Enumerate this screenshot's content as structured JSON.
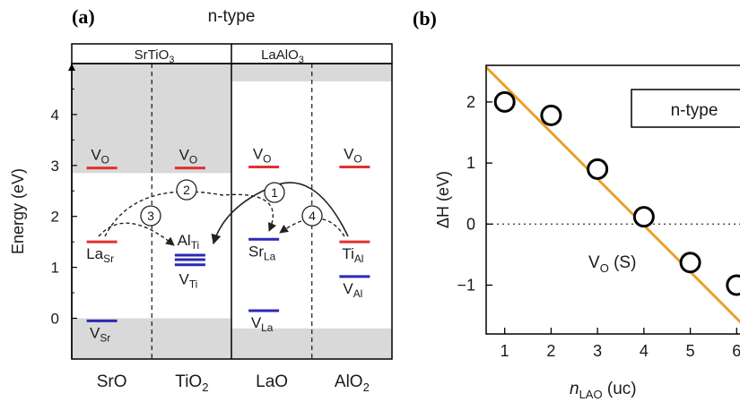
{
  "panel_a": {
    "panel_label": "(a)",
    "title": "n-type",
    "header_left": "SrTiO",
    "header_left_sub": "3",
    "header_right": "LaAlO",
    "header_right_sub": "3",
    "ylabel": "Energy (eV)",
    "yticks": [
      "0",
      "1",
      "2",
      "3",
      "4"
    ],
    "columns": [
      {
        "main": "SrO",
        "sub": ""
      },
      {
        "main": "TiO",
        "sub": "2"
      },
      {
        "main": "LaO",
        "sub": ""
      },
      {
        "main": "AlO",
        "sub": "2"
      }
    ],
    "transition_labels": [
      "1",
      "2",
      "3",
      "4"
    ],
    "colors": {
      "vo": "#e0312f",
      "dopant": "#e0312f",
      "vacancy": "#2a2ab5",
      "band": "#d9d9d9",
      "arrow": "#222222"
    }
  },
  "panel_b": {
    "panel_label": "(b)",
    "legend": "n-type",
    "ylabel": "ΔH (eV)",
    "xlabel": "n",
    "xlabel_sub": "LAO",
    "xlabel_unit": " (uc)",
    "annotation": "V",
    "annotation_sub": "O",
    "annotation_tail": " (S)",
    "xticks": [
      "1",
      "2",
      "3",
      "4",
      "5",
      "6"
    ],
    "yticks": [
      "2",
      "1",
      "0",
      "−1"
    ],
    "line_color": "#e9a12c"
  },
  "chart_data": [
    {
      "type": "diagram",
      "title": "n-type",
      "ylabel": "Energy (eV)",
      "ylim": [
        -0.8,
        5.0
      ],
      "yticks": [
        0,
        1,
        2,
        3,
        4
      ],
      "categories": [
        "SrO",
        "TiO2",
        "LaO",
        "AlO2"
      ],
      "valence_band_top": [
        0.0,
        0.0,
        -0.2,
        -0.2
      ],
      "conduction_band_bottom": [
        2.85,
        2.85,
        4.65,
        4.65
      ],
      "levels": [
        {
          "label": "V",
          "sub": "O",
          "column": 0,
          "energy": 2.95,
          "color": "red"
        },
        {
          "label": "V",
          "sub": "O",
          "column": 1,
          "energy": 2.95,
          "color": "red"
        },
        {
          "label": "V",
          "sub": "O",
          "column": 2,
          "energy": 2.97,
          "color": "red"
        },
        {
          "label": "V",
          "sub": "O",
          "column": 3,
          "energy": 2.97,
          "color": "red"
        },
        {
          "label": "La",
          "sub": "Sr",
          "column": 0,
          "energy": 1.5,
          "color": "red"
        },
        {
          "label": "V",
          "sub": "Sr",
          "column": 0,
          "energy": -0.05,
          "color": "blue"
        },
        {
          "label": "Al",
          "sub": "Ti",
          "column": 1,
          "energy": 1.15,
          "color": "blue"
        },
        {
          "label": "V",
          "sub": "Ti",
          "column": 1,
          "energy": 1.05,
          "color": "blue"
        },
        {
          "label": "Sr",
          "sub": "La",
          "column": 2,
          "energy": 1.55,
          "color": "blue"
        },
        {
          "label": "V",
          "sub": "La",
          "column": 2,
          "energy": 0.15,
          "color": "blue"
        },
        {
          "label": "Ti",
          "sub": "Al",
          "column": 3,
          "energy": 1.5,
          "color": "red"
        },
        {
          "label": "V",
          "sub": "Al",
          "column": 3,
          "energy": 0.82,
          "color": "blue"
        }
      ]
    },
    {
      "type": "scatter",
      "legend": "n-type",
      "xlabel": "nLAO (uc)",
      "ylabel": "ΔH (eV)",
      "xlim": [
        0.6,
        6.4
      ],
      "ylim": [
        -1.8,
        2.6
      ],
      "xticks": [
        1,
        2,
        3,
        4,
        5,
        6
      ],
      "yticks": [
        -1,
        0,
        1,
        2
      ],
      "points": [
        {
          "x": 1,
          "y": 2.0
        },
        {
          "x": 2,
          "y": 1.78
        },
        {
          "x": 3,
          "y": 0.9
        },
        {
          "x": 4,
          "y": 0.12
        },
        {
          "x": 5,
          "y": -0.63
        },
        {
          "x": 6,
          "y": -1.0
        }
      ],
      "fit_line": {
        "x": [
          0.6,
          6.4
        ],
        "y": [
          2.57,
          -1.85
        ]
      },
      "reference_line_y": 0
    }
  ]
}
